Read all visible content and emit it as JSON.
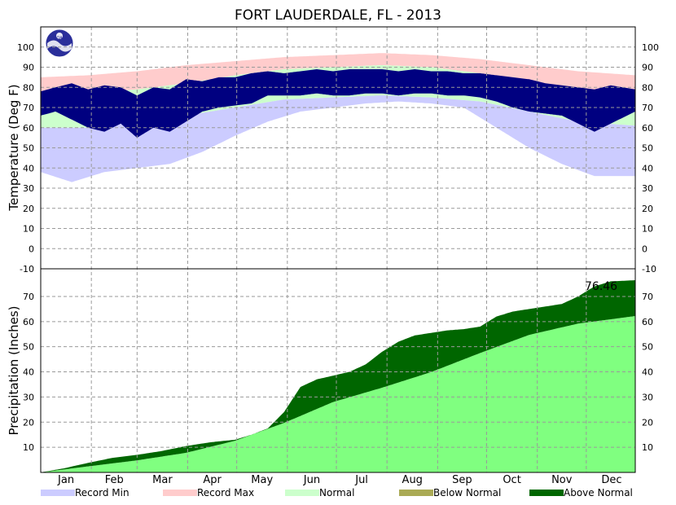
{
  "chart_data": {
    "type": "area",
    "title": "FORT LAUDERDALE, FL - 2013",
    "months": [
      "Jan",
      "Feb",
      "Mar",
      "Apr",
      "May",
      "Jun",
      "Jul",
      "Aug",
      "Sep",
      "Oct",
      "Nov",
      "Dec"
    ],
    "temperature": {
      "ylabel": "Temperature (Deg F)",
      "ylim": [
        -10,
        110
      ],
      "ticks": [
        100,
        90,
        80,
        70,
        60,
        50,
        40,
        30,
        20,
        10,
        0,
        -10
      ],
      "series": [
        {
          "name": "Record Min",
          "color": "#ccccff",
          "x": [
            1,
            20,
            40,
            60,
            80,
            100,
            120,
            140,
            160,
            180,
            200,
            220,
            240,
            260,
            280,
            300,
            320,
            340,
            365
          ],
          "values": [
            38,
            33,
            38,
            40,
            42,
            48,
            56,
            63,
            68,
            70,
            72,
            73,
            72,
            70,
            60,
            50,
            42,
            36,
            36
          ]
        },
        {
          "name": "Record Max",
          "color": "#ffcccc",
          "x": [
            1,
            30,
            60,
            90,
            120,
            150,
            180,
            210,
            240,
            270,
            300,
            330,
            365
          ],
          "values": [
            85,
            86,
            88,
            91,
            93,
            95,
            96,
            97,
            96,
            94,
            91,
            88,
            86
          ]
        },
        {
          "name": "Normal",
          "color": "#ccffcc",
          "x": [
            1,
            30,
            60,
            90,
            120,
            150,
            180,
            210,
            240,
            270,
            300,
            330,
            365
          ],
          "high": [
            76,
            77,
            79,
            82,
            86,
            89,
            90,
            91,
            90,
            87,
            83,
            79,
            77
          ],
          "low": [
            60,
            60,
            63,
            66,
            70,
            74,
            75,
            76,
            75,
            73,
            68,
            63,
            61
          ]
        },
        {
          "name": "Actual",
          "color": "#000080",
          "x": [
            1,
            10,
            20,
            30,
            40,
            50,
            60,
            70,
            80,
            90,
            100,
            110,
            120,
            130,
            140,
            150,
            160,
            170,
            180,
            190,
            200,
            210,
            220,
            230,
            240,
            250,
            260,
            270,
            280,
            290,
            300,
            310,
            320,
            330,
            340,
            350,
            365
          ],
          "high": [
            78,
            80,
            82,
            79,
            81,
            80,
            76,
            80,
            79,
            84,
            83,
            85,
            85,
            87,
            88,
            87,
            88,
            89,
            88,
            89,
            89,
            89,
            88,
            89,
            88,
            88,
            87,
            87,
            86,
            85,
            84,
            82,
            81,
            80,
            79,
            81,
            79
          ],
          "low": [
            66,
            68,
            64,
            60,
            58,
            62,
            55,
            60,
            58,
            63,
            68,
            70,
            71,
            72,
            76,
            76,
            76,
            77,
            76,
            76,
            77,
            77,
            76,
            77,
            77,
            76,
            76,
            75,
            73,
            70,
            68,
            67,
            66,
            62,
            58,
            62,
            68
          ]
        }
      ]
    },
    "precipitation": {
      "ylabel": "Precipitation (Inches)",
      "ylim": [
        0,
        81
      ],
      "ticks": [
        70,
        60,
        50,
        40,
        30,
        20,
        10
      ],
      "total_label": "76.46",
      "series": [
        {
          "name": "Normal",
          "color": "#80ff80",
          "x": [
            1,
            30,
            60,
            90,
            120,
            150,
            180,
            210,
            240,
            270,
            300,
            330,
            365
          ],
          "values": [
            0,
            2.4,
            4.8,
            7.8,
            12.6,
            19.7,
            28.0,
            33.7,
            39.9,
            47.5,
            54.7,
            59.2,
            62.2
          ]
        },
        {
          "name": "Observed",
          "color": "#006600",
          "x": [
            1,
            15,
            30,
            45,
            60,
            75,
            90,
            105,
            120,
            130,
            140,
            150,
            160,
            170,
            180,
            190,
            200,
            210,
            220,
            230,
            240,
            250,
            260,
            270,
            280,
            290,
            300,
            310,
            320,
            330,
            340,
            350,
            365
          ],
          "values": [
            0,
            1.6,
            3.8,
            5.8,
            7.0,
            8.5,
            10.5,
            12.0,
            13.0,
            15.0,
            17.5,
            24.0,
            34.0,
            37.0,
            38.5,
            40.0,
            43.0,
            48.0,
            52.0,
            54.5,
            55.5,
            56.5,
            57.0,
            58.0,
            62.0,
            64.0,
            65.0,
            66.0,
            67.0,
            70.0,
            74.0,
            76.0,
            76.46
          ]
        }
      ]
    },
    "legend": [
      {
        "label": "Record Min",
        "color": "#ccccff"
      },
      {
        "label": "Record Max",
        "color": "#ffcccc"
      },
      {
        "label": "Normal",
        "color": "#ccffcc"
      },
      {
        "label": "Below Normal",
        "color": "#aaaa55"
      },
      {
        "label": "Above Normal",
        "color": "#006600"
      }
    ],
    "logo": "noaa-logo"
  }
}
